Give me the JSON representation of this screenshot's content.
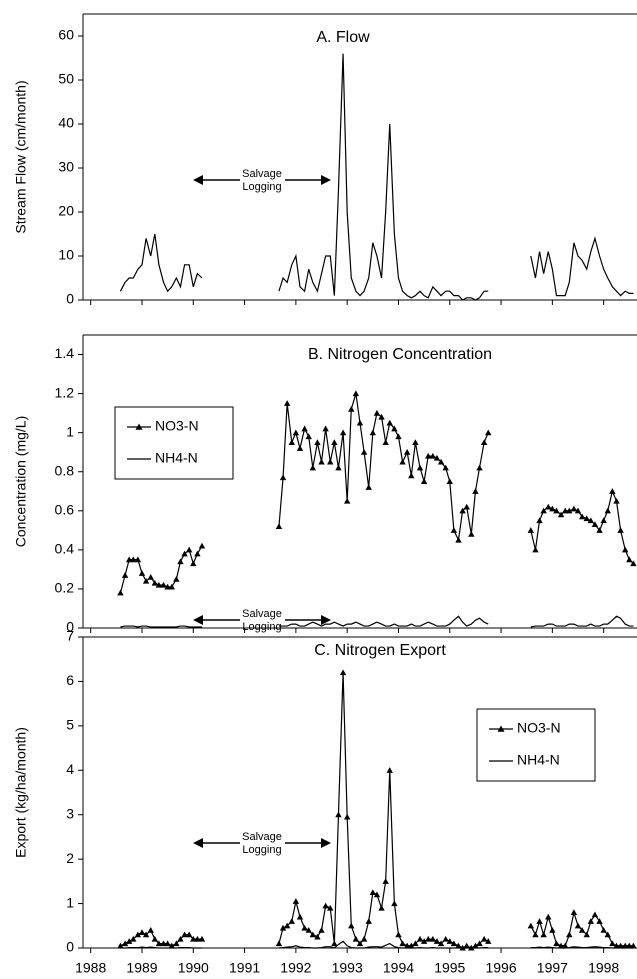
{
  "chart_data": [
    {
      "type": "line",
      "title": "A. Flow",
      "y_label": "Stream Flow (cm/month)",
      "annotation_lines": [
        "Salvage",
        "Logging"
      ],
      "x": [
        1988.58,
        1988.67,
        1988.75,
        1988.83,
        1988.92,
        1989.0,
        1989.08,
        1989.17,
        1989.25,
        1989.33,
        1989.42,
        1989.5,
        1989.58,
        1989.67,
        1989.75,
        1989.83,
        1989.92,
        1990.0,
        1990.08,
        1990.17,
        1991.0,
        1991.67,
        1991.75,
        1991.83,
        1991.92,
        1992.0,
        1992.08,
        1992.17,
        1992.25,
        1992.33,
        1992.42,
        1992.5,
        1992.58,
        1992.67,
        1992.75,
        1992.83,
        1992.92,
        1993.0,
        1993.08,
        1993.17,
        1993.25,
        1993.33,
        1993.42,
        1993.5,
        1993.58,
        1993.67,
        1993.75,
        1993.83,
        1993.92,
        1994.0,
        1994.08,
        1994.17,
        1994.25,
        1994.33,
        1994.42,
        1994.5,
        1994.58,
        1994.67,
        1994.75,
        1994.83,
        1994.92,
        1995.0,
        1995.08,
        1995.17,
        1995.25,
        1995.33,
        1995.42,
        1995.5,
        1995.58,
        1995.67,
        1995.75,
        1996.2,
        1996.58,
        1996.67,
        1996.75,
        1996.83,
        1996.92,
        1997.0,
        1997.08,
        1997.17,
        1997.25,
        1997.33,
        1997.42,
        1997.5,
        1997.58,
        1997.67,
        1997.75,
        1997.83,
        1997.92,
        1998.0,
        1998.08,
        1998.17,
        1998.25,
        1998.33,
        1998.42,
        1998.5,
        1998.58
      ],
      "series": [
        {
          "color": "#000000",
          "values": [
            2,
            4,
            5,
            5,
            7,
            8,
            14,
            10,
            15,
            8,
            4,
            2,
            3,
            5,
            3,
            8,
            8,
            3,
            6,
            5,
            null,
            2,
            5,
            4,
            8,
            10,
            3,
            2,
            7,
            4,
            2,
            6,
            10,
            10,
            1,
            25,
            56,
            20,
            5,
            2,
            1,
            2,
            5,
            13,
            10,
            5,
            20,
            40,
            15,
            5,
            2,
            1,
            0.5,
            1,
            2,
            1,
            0.5,
            3,
            2,
            1,
            2,
            2,
            1,
            1,
            0,
            0.5,
            0.5,
            0,
            0.5,
            2,
            2,
            null,
            10,
            5,
            11,
            6,
            11,
            7,
            1,
            1,
            1,
            4,
            13,
            10,
            9,
            7,
            11,
            14,
            10,
            7,
            5,
            3,
            2,
            1,
            2,
            1.5,
            1.5
          ]
        }
      ],
      "xlim": [
        1987.85,
        1998.65
      ],
      "xticks": [
        1988,
        1989,
        1990,
        1991,
        1992,
        1993,
        1994,
        1995,
        1996,
        1997,
        1998
      ],
      "ylim": [
        0,
        65
      ],
      "yticks": [
        0,
        10,
        20,
        30,
        40,
        50,
        60
      ]
    },
    {
      "type": "line",
      "title": "B. Nitrogen Concentration",
      "y_label": "Concentration (mg/L)",
      "annotation_lines": [
        "Salvage",
        "Logging"
      ],
      "legend": "upper left",
      "x": [
        1988.58,
        1988.67,
        1988.75,
        1988.83,
        1988.92,
        1989.0,
        1989.08,
        1989.17,
        1989.25,
        1989.33,
        1989.42,
        1989.5,
        1989.58,
        1989.67,
        1989.75,
        1989.83,
        1989.92,
        1990.0,
        1990.08,
        1990.17,
        1991.0,
        1991.67,
        1991.75,
        1991.83,
        1991.92,
        1992.0,
        1992.08,
        1992.17,
        1992.25,
        1992.33,
        1992.42,
        1992.5,
        1992.58,
        1992.67,
        1992.75,
        1992.83,
        1992.92,
        1993.0,
        1993.08,
        1993.17,
        1993.25,
        1993.33,
        1993.42,
        1993.5,
        1993.58,
        1993.67,
        1993.75,
        1993.83,
        1993.92,
        1994.0,
        1994.08,
        1994.17,
        1994.25,
        1994.33,
        1994.42,
        1994.5,
        1994.58,
        1994.67,
        1994.75,
        1994.83,
        1994.92,
        1995.0,
        1995.08,
        1995.17,
        1995.25,
        1995.33,
        1995.42,
        1995.5,
        1995.58,
        1995.67,
        1995.75,
        1996.2,
        1996.58,
        1996.67,
        1996.75,
        1996.83,
        1996.92,
        1997.0,
        1997.08,
        1997.17,
        1997.25,
        1997.33,
        1997.42,
        1997.5,
        1997.58,
        1997.67,
        1997.75,
        1997.83,
        1997.92,
        1998.0,
        1998.08,
        1998.17,
        1998.25,
        1998.33,
        1998.42,
        1998.5,
        1998.58
      ],
      "series": [
        {
          "name": "NO3-N",
          "color": "#000000",
          "marker": "triangle",
          "values": [
            0.18,
            0.27,
            0.35,
            0.35,
            0.35,
            0.28,
            0.24,
            0.26,
            0.23,
            0.22,
            0.22,
            0.21,
            0.21,
            0.25,
            0.34,
            0.38,
            0.4,
            0.33,
            0.38,
            0.42,
            null,
            0.52,
            0.77,
            1.15,
            0.95,
            1.0,
            0.92,
            1.02,
            0.98,
            0.82,
            0.95,
            0.85,
            1.02,
            0.85,
            0.95,
            0.82,
            1.0,
            0.65,
            1.12,
            1.2,
            1.05,
            0.9,
            0.72,
            1.0,
            1.1,
            1.08,
            0.95,
            1.05,
            1.02,
            0.98,
            0.85,
            0.9,
            0.78,
            0.95,
            0.82,
            0.75,
            0.88,
            0.88,
            0.87,
            0.85,
            0.82,
            0.75,
            0.5,
            0.45,
            0.6,
            0.62,
            0.48,
            0.7,
            0.82,
            0.95,
            1.0,
            null,
            0.5,
            0.4,
            0.55,
            0.6,
            0.62,
            0.61,
            0.6,
            0.58,
            0.6,
            0.6,
            0.61,
            0.6,
            0.57,
            0.56,
            0.55,
            0.53,
            0.5,
            0.55,
            0.6,
            0.7,
            0.65,
            0.5,
            0.4,
            0.35,
            0.33
          ]
        },
        {
          "name": "NH4-N",
          "color": "#000000",
          "values": [
            0.005,
            0.01,
            0.01,
            0.01,
            0.005,
            0.01,
            0.01,
            0.005,
            0.005,
            0.005,
            0.005,
            0.005,
            0.005,
            0.005,
            0.01,
            0.01,
            0.005,
            0.005,
            0.005,
            0.005,
            null,
            0.01,
            0.01,
            0.01,
            0.02,
            0.02,
            0.01,
            0.01,
            0.02,
            0.03,
            0.02,
            0.01,
            0.02,
            0.02,
            0.03,
            0.02,
            0.01,
            0.02,
            0.02,
            0.03,
            0.02,
            0.01,
            0.01,
            0.02,
            0.03,
            0.02,
            0.01,
            0.01,
            0.02,
            0.01,
            0.01,
            0.01,
            0.02,
            0.01,
            0.01,
            0.02,
            0.03,
            0.02,
            0.01,
            0.01,
            0.01,
            0.02,
            0.04,
            0.06,
            0.03,
            0.01,
            0.02,
            0.04,
            0.05,
            0.03,
            0.02,
            null,
            0.005,
            0.01,
            0.01,
            0.01,
            0.02,
            0.02,
            0.01,
            0.01,
            0.01,
            0.02,
            0.02,
            0.01,
            0.01,
            0.01,
            0.02,
            0.01,
            0.01,
            0.02,
            0.02,
            0.04,
            0.06,
            0.05,
            0.02,
            0.01,
            0.01
          ]
        }
      ],
      "xlim": [
        1987.85,
        1998.65
      ],
      "xticks": [
        1988,
        1989,
        1990,
        1991,
        1992,
        1993,
        1994,
        1995,
        1996,
        1997,
        1998
      ],
      "ylim": [
        0,
        1.5
      ],
      "yticks": [
        0,
        0.2,
        0.4,
        0.6,
        0.8,
        1,
        1.2,
        1.4
      ]
    },
    {
      "type": "line",
      "title": "C. Nitrogen Export",
      "y_label": "Export (kg/ha/month)",
      "annotation_lines": [
        "Salvage",
        "Logging"
      ],
      "legend": "upper right",
      "x": [
        1988.58,
        1988.67,
        1988.75,
        1988.83,
        1988.92,
        1989.0,
        1989.08,
        1989.17,
        1989.25,
        1989.33,
        1989.42,
        1989.5,
        1989.58,
        1989.67,
        1989.75,
        1989.83,
        1989.92,
        1990.0,
        1990.08,
        1990.17,
        1991.0,
        1991.67,
        1991.75,
        1991.83,
        1991.92,
        1992.0,
        1992.08,
        1992.17,
        1992.25,
        1992.33,
        1992.42,
        1992.5,
        1992.58,
        1992.67,
        1992.75,
        1992.83,
        1992.92,
        1993.0,
        1993.08,
        1993.17,
        1993.25,
        1993.33,
        1993.42,
        1993.5,
        1993.58,
        1993.67,
        1993.75,
        1993.83,
        1993.92,
        1994.0,
        1994.08,
        1994.17,
        1994.25,
        1994.33,
        1994.42,
        1994.5,
        1994.58,
        1994.67,
        1994.75,
        1994.83,
        1994.92,
        1995.0,
        1995.08,
        1995.17,
        1995.25,
        1995.33,
        1995.42,
        1995.5,
        1995.58,
        1995.67,
        1995.75,
        1996.2,
        1996.58,
        1996.67,
        1996.75,
        1996.83,
        1996.92,
        1997.0,
        1997.08,
        1997.17,
        1997.25,
        1997.33,
        1997.42,
        1997.5,
        1997.58,
        1997.67,
        1997.75,
        1997.83,
        1997.92,
        1998.0,
        1998.08,
        1998.17,
        1998.25,
        1998.33,
        1998.42,
        1998.5,
        1998.58
      ],
      "series": [
        {
          "name": "NO3-N",
          "color": "#000000",
          "marker": "triangle",
          "values": [
            0.05,
            0.1,
            0.15,
            0.2,
            0.3,
            0.35,
            0.3,
            0.4,
            0.2,
            0.1,
            0.1,
            0.1,
            0.05,
            0.1,
            0.2,
            0.3,
            0.3,
            0.2,
            0.2,
            0.2,
            null,
            0.1,
            0.45,
            0.5,
            0.6,
            1.05,
            0.7,
            0.45,
            0.4,
            0.3,
            0.25,
            0.4,
            0.95,
            0.9,
            0.1,
            3.0,
            6.2,
            2.95,
            0.5,
            0.2,
            0.1,
            0.2,
            0.6,
            1.25,
            1.2,
            0.9,
            1.5,
            4.0,
            1.0,
            0.3,
            0.1,
            0.05,
            0.05,
            0.1,
            0.2,
            0.15,
            0.2,
            0.2,
            0.15,
            0.1,
            0.2,
            0.15,
            0.1,
            0.05,
            0,
            0.05,
            0,
            0.05,
            0.1,
            0.2,
            0.15,
            null,
            0.5,
            0.3,
            0.6,
            0.3,
            0.7,
            0.4,
            0.1,
            0.05,
            0.05,
            0.3,
            0.8,
            0.5,
            0.4,
            0.3,
            0.6,
            0.75,
            0.6,
            0.4,
            0.3,
            0.1,
            0.05,
            0.05,
            0.05,
            0.05,
            0.05
          ]
        },
        {
          "name": "NH4-N",
          "color": "#000000",
          "values": [
            0,
            0,
            0.01,
            0.01,
            0.01,
            0.02,
            0.01,
            0.02,
            0.01,
            0,
            0,
            0,
            0,
            0,
            0.01,
            0.01,
            0.01,
            0,
            0,
            0,
            null,
            0,
            0.01,
            0.02,
            0.03,
            0.05,
            0.02,
            0.01,
            0.01,
            0,
            0,
            0.01,
            0.03,
            0.03,
            0,
            0.08,
            0.15,
            0.05,
            0.01,
            0,
            0,
            0,
            0.02,
            0.03,
            0.03,
            0.02,
            0.06,
            0.1,
            0.03,
            0.01,
            0,
            0,
            0,
            0,
            0.01,
            0,
            0,
            0.01,
            0,
            0,
            0,
            0,
            0,
            0,
            0,
            0,
            0,
            0,
            0,
            0.01,
            0.01,
            null,
            0.01,
            0.01,
            0.02,
            0.01,
            0.02,
            0.01,
            0,
            0,
            0,
            0.01,
            0.03,
            0.02,
            0.01,
            0.01,
            0.02,
            0.03,
            0.02,
            0.01,
            0.01,
            0,
            0,
            0,
            0,
            0,
            0
          ]
        }
      ],
      "xlim": [
        1987.85,
        1998.65
      ],
      "xticks": [
        1988,
        1989,
        1990,
        1991,
        1992,
        1993,
        1994,
        1995,
        1996,
        1997,
        1998
      ],
      "ylim": [
        0,
        7
      ],
      "yticks": [
        0,
        1,
        2,
        3,
        4,
        5,
        6,
        7
      ]
    }
  ]
}
